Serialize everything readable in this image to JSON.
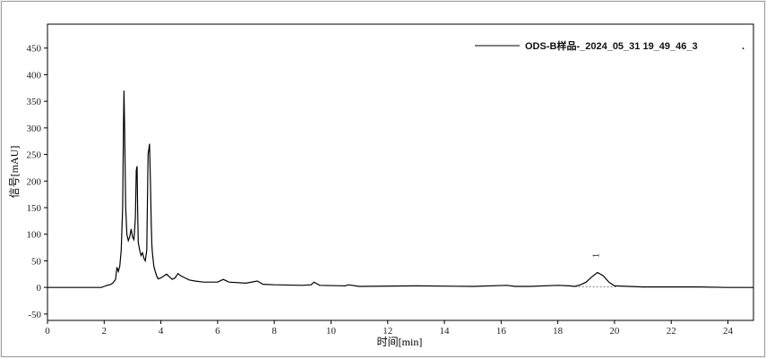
{
  "chart_data": {
    "type": "line",
    "title": "",
    "xlabel": "时间[min]",
    "ylabel": "信号[mAU]",
    "xlim": [
      0,
      24.9
    ],
    "ylim": [
      -62,
      495
    ],
    "xticks": [
      0,
      2,
      4,
      6,
      8,
      10,
      12,
      14,
      16,
      18,
      20,
      22,
      24
    ],
    "yticks": [
      -50,
      0,
      50,
      100,
      150,
      200,
      250,
      300,
      350,
      400,
      450
    ],
    "grid": false,
    "legend_position": "top-right",
    "line_color": "#000000",
    "series": [
      {
        "name": "ODS-B样品-_2024_05_31 19_49_46_3",
        "x": [
          0,
          1.9,
          2.0,
          2.1,
          2.2,
          2.3,
          2.4,
          2.45,
          2.5,
          2.55,
          2.6,
          2.65,
          2.68,
          2.7,
          2.72,
          2.74,
          2.76,
          2.8,
          2.85,
          2.9,
          2.95,
          3.0,
          3.05,
          3.1,
          3.13,
          3.16,
          3.18,
          3.2,
          3.25,
          3.3,
          3.35,
          3.4,
          3.45,
          3.5,
          3.55,
          3.6,
          3.63,
          3.66,
          3.68,
          3.7,
          3.75,
          3.8,
          3.85,
          3.9,
          4.0,
          4.2,
          4.4,
          4.5,
          4.6,
          4.7,
          4.85,
          5.0,
          5.2,
          5.5,
          6.0,
          6.2,
          6.4,
          7.0,
          7.4,
          7.6,
          8.0,
          9.0,
          9.3,
          9.4,
          9.6,
          10.5,
          10.6,
          11,
          13,
          15,
          16.2,
          16.5,
          17,
          18,
          18.4,
          18.6,
          18.8,
          19.0,
          19.2,
          19.4,
          19.6,
          19.8,
          20.0,
          20.5,
          21,
          22,
          23,
          24,
          24.9
        ],
        "values": [
          0,
          0,
          2,
          4,
          5,
          8,
          15,
          38,
          30,
          40,
          70,
          150,
          300,
          370,
          300,
          220,
          150,
          100,
          88,
          95,
          110,
          95,
          90,
          130,
          220,
          228,
          150,
          85,
          70,
          60,
          65,
          55,
          50,
          70,
          250,
          270,
          200,
          120,
          80,
          65,
          40,
          30,
          22,
          16,
          18,
          25,
          15,
          18,
          26,
          22,
          18,
          14,
          12,
          10,
          10,
          15,
          10,
          8,
          12,
          6,
          5,
          4,
          5,
          10,
          4,
          3,
          5,
          2,
          3,
          2,
          4,
          2,
          2,
          4,
          3,
          2,
          5,
          10,
          20,
          28,
          22,
          10,
          3,
          2,
          1,
          1,
          1,
          0,
          0
        ]
      }
    ],
    "annotations": [
      {
        "x": 19.2,
        "label": "1"
      }
    ]
  }
}
